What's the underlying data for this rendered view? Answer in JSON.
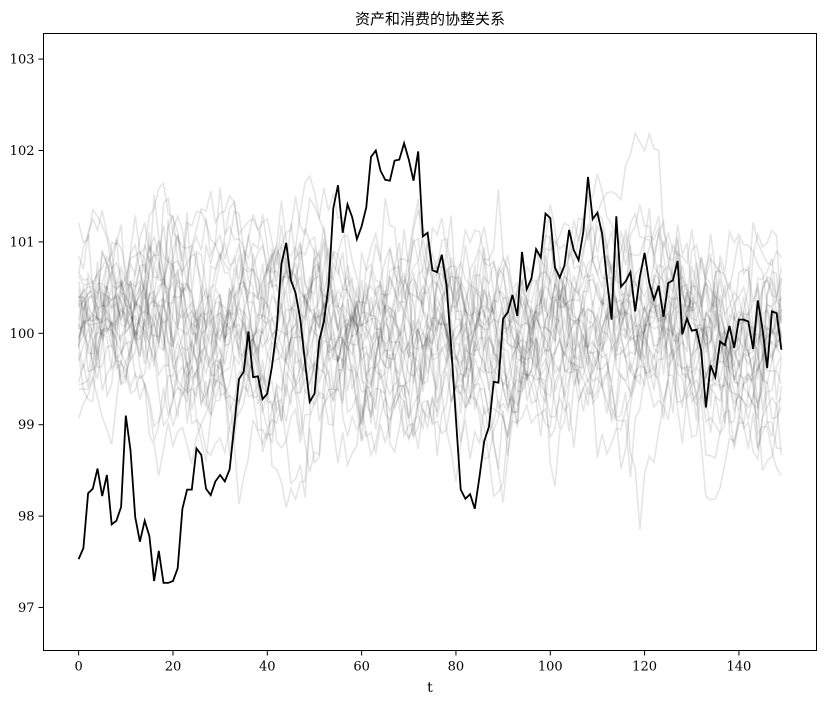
{
  "chart_data": {
    "type": "line",
    "title": "资产和消费的协整关系",
    "xlabel": "t",
    "ylabel": "",
    "xlim": [
      -7.45,
      156.45
    ],
    "ylim": [
      96.53,
      103.28
    ],
    "xticks": [
      0,
      20,
      40,
      60,
      80,
      100,
      120,
      140
    ],
    "yticks": [
      97,
      98,
      99,
      100,
      101,
      102,
      103
    ],
    "grid": false,
    "highlight_series": {
      "color": "#000000",
      "x_start": 0,
      "x_step": 1,
      "values": [
        97.53,
        97.65,
        98.25,
        98.3,
        98.52,
        98.22,
        98.45,
        97.91,
        97.95,
        98.1,
        99.1,
        98.72,
        97.99,
        97.72,
        97.95,
        97.78,
        97.29,
        97.62,
        97.27,
        97.27,
        97.29,
        97.43,
        98.08,
        98.29,
        98.29,
        98.74,
        98.67,
        98.3,
        98.23,
        98.38,
        98.45,
        98.38,
        98.51,
        98.99,
        99.5,
        99.58,
        100.02,
        99.52,
        99.53,
        99.28,
        99.34,
        99.64,
        100.05,
        100.76,
        100.99,
        100.58,
        100.44,
        100.15,
        99.69,
        99.25,
        99.34,
        99.92,
        100.13,
        100.52,
        101.37,
        101.62,
        101.1,
        101.41,
        101.27,
        101.03,
        101.17,
        101.38,
        101.93,
        102.0,
        101.78,
        101.68,
        101.67,
        101.89,
        101.9,
        102.08,
        101.9,
        101.67,
        101.99,
        101.06,
        101.1,
        100.69,
        100.67,
        100.86,
        100.53,
        99.85,
        99.07,
        98.29,
        98.19,
        98.24,
        98.08,
        98.43,
        98.82,
        98.98,
        99.47,
        99.46,
        100.16,
        100.23,
        100.42,
        100.19,
        100.89,
        100.48,
        100.6,
        100.92,
        100.83,
        101.31,
        101.26,
        100.72,
        100.61,
        100.74,
        101.13,
        100.91,
        100.8,
        101.11,
        101.71,
        101.25,
        101.32,
        101.09,
        100.59,
        100.15,
        101.28,
        100.51,
        100.57,
        100.67,
        100.24,
        100.62,
        100.88,
        100.55,
        100.37,
        100.52,
        100.18,
        100.55,
        100.58,
        100.79,
        99.99,
        100.16,
        100.03,
        100.04,
        99.81,
        99.19,
        99.65,
        99.52,
        99.91,
        99.87,
        100.08,
        99.84,
        100.15,
        100.15,
        100.13,
        99.83,
        100.36,
        100.05,
        99.62,
        100.24,
        100.22,
        99.82
      ]
    },
    "background_series": {
      "count": 30,
      "color": "#000000",
      "opacity": 0.1,
      "x_range": [
        0,
        149
      ],
      "value_center": 100.0,
      "value_range": [
        96.9,
        103.0
      ]
    }
  }
}
